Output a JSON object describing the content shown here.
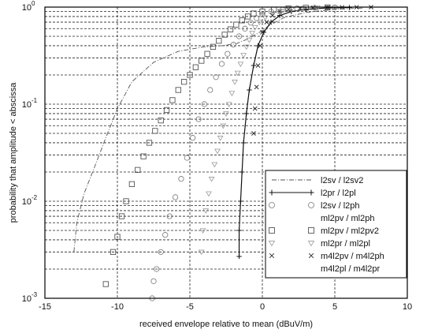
{
  "chart_data": {
    "type": "line",
    "title": "",
    "xlabel": "received envelope relative to mean (dBuV/m)",
    "ylabel": "probability that amplitude < abscissa",
    "xlim": [
      -15,
      10
    ],
    "ylim": [
      0.001,
      1
    ],
    "yscale": "log",
    "grid": true,
    "legend_position": "lower-right",
    "x_ticks": [
      "-15",
      "-10",
      "-5",
      "0",
      "5",
      "10"
    ],
    "y_ticks": [
      {
        "exp": "-3",
        "value": 0.001
      },
      {
        "exp": "-2",
        "value": 0.01
      },
      {
        "exp": "-1",
        "value": 0.1
      },
      {
        "exp": "0",
        "value": 1
      }
    ],
    "series": [
      {
        "name": "l2sv / l2sv2",
        "marker": "none",
        "dash": "dashdot",
        "points": [
          [
            -13.0,
            0.003
          ],
          [
            -12.8,
            0.006
          ],
          [
            -12.3,
            0.012
          ],
          [
            -11.6,
            0.022
          ],
          [
            -10.8,
            0.045
          ],
          [
            -10.0,
            0.09
          ],
          [
            -9.0,
            0.17
          ],
          [
            -7.5,
            0.27
          ],
          [
            -5.8,
            0.35
          ],
          [
            -4.0,
            0.39
          ],
          [
            -2.8,
            0.4
          ],
          [
            -1.8,
            0.42
          ],
          [
            -1.0,
            0.47
          ],
          [
            -0.2,
            0.55
          ],
          [
            0.5,
            0.65
          ],
          [
            1.5,
            0.78
          ],
          [
            3.0,
            0.88
          ],
          [
            5.0,
            0.95
          ],
          [
            7.0,
            0.98
          ]
        ]
      },
      {
        "name": "l2pr / l2pl",
        "marker": "plus",
        "dash": "solid",
        "points": [
          [
            -1.6,
            0.0027
          ],
          [
            -1.6,
            0.005
          ],
          [
            -1.5,
            0.01
          ],
          [
            -1.4,
            0.02
          ],
          [
            -1.3,
            0.04
          ],
          [
            -1.1,
            0.08
          ],
          [
            -0.9,
            0.14
          ],
          [
            -0.6,
            0.25
          ],
          [
            -0.3,
            0.4
          ],
          [
            0.1,
            0.55
          ],
          [
            0.6,
            0.7
          ],
          [
            1.2,
            0.82
          ],
          [
            2.0,
            0.9
          ],
          [
            3.0,
            0.95
          ],
          [
            4.5,
            0.98
          ],
          [
            6.0,
            0.99
          ]
        ]
      },
      {
        "name": "l2sv / l2ph",
        "name2": "ml2pv / ml2ph",
        "marker": "circle",
        "dash": "none",
        "points": [
          [
            -7.6,
            0.001
          ],
          [
            -7.5,
            0.0015
          ],
          [
            -7.3,
            0.002
          ],
          [
            -7.0,
            0.003
          ],
          [
            -6.7,
            0.0045
          ],
          [
            -6.4,
            0.007
          ],
          [
            -6.0,
            0.011
          ],
          [
            -5.6,
            0.017
          ],
          [
            -5.2,
            0.028
          ],
          [
            -4.8,
            0.045
          ],
          [
            -4.4,
            0.07
          ],
          [
            -4.0,
            0.1
          ],
          [
            -3.6,
            0.14
          ],
          [
            -3.2,
            0.19
          ],
          [
            -2.8,
            0.26
          ],
          [
            -2.4,
            0.33
          ],
          [
            -2.0,
            0.41
          ],
          [
            -1.6,
            0.5
          ],
          [
            -1.2,
            0.6
          ],
          [
            -0.8,
            0.69
          ],
          [
            -0.4,
            0.77
          ],
          [
            0.0,
            0.84
          ],
          [
            0.6,
            0.9
          ],
          [
            1.4,
            0.94
          ],
          [
            2.4,
            0.97
          ],
          [
            3.6,
            0.985
          ],
          [
            5.0,
            0.993
          ]
        ]
      },
      {
        "name": "ml2pv / ml2pv2",
        "marker": "square",
        "dash": "none",
        "points": [
          [
            -10.8,
            0.0014
          ],
          [
            -10.3,
            0.003
          ],
          [
            -10.0,
            0.0043
          ],
          [
            -9.7,
            0.007
          ],
          [
            -9.4,
            0.01
          ],
          [
            -9.0,
            0.015
          ],
          [
            -8.6,
            0.021
          ],
          [
            -8.2,
            0.029
          ],
          [
            -7.8,
            0.04
          ],
          [
            -7.4,
            0.053
          ],
          [
            -7.0,
            0.068
          ],
          [
            -6.6,
            0.087
          ],
          [
            -6.2,
            0.11
          ],
          [
            -5.8,
            0.14
          ],
          [
            -5.4,
            0.17
          ],
          [
            -5.0,
            0.2
          ],
          [
            -4.6,
            0.24
          ],
          [
            -4.2,
            0.28
          ],
          [
            -3.8,
            0.33
          ],
          [
            -3.4,
            0.39
          ],
          [
            -3.0,
            0.45
          ],
          [
            -2.6,
            0.52
          ],
          [
            -2.2,
            0.59
          ],
          [
            -1.8,
            0.66
          ],
          [
            -1.4,
            0.73
          ],
          [
            -1.0,
            0.8
          ],
          [
            -0.6,
            0.86
          ],
          [
            0.0,
            0.9
          ],
          [
            0.8,
            0.94
          ],
          [
            1.8,
            0.97
          ],
          [
            3.0,
            0.985
          ],
          [
            4.5,
            0.993
          ]
        ]
      },
      {
        "name": "ml2pr / ml2pl",
        "marker": "triangle-down",
        "dash": "none",
        "points": [
          [
            -4.2,
            0.003
          ],
          [
            -4.1,
            0.005
          ],
          [
            -3.9,
            0.008
          ],
          [
            -3.7,
            0.012
          ],
          [
            -3.5,
            0.017
          ],
          [
            -3.3,
            0.024
          ],
          [
            -3.1,
            0.033
          ],
          [
            -2.9,
            0.045
          ],
          [
            -2.7,
            0.06
          ],
          [
            -2.5,
            0.08
          ],
          [
            -2.3,
            0.1
          ],
          [
            -2.1,
            0.13
          ],
          [
            -1.9,
            0.17
          ],
          [
            -1.7,
            0.21
          ],
          [
            -1.5,
            0.26
          ],
          [
            -1.3,
            0.32
          ],
          [
            -1.1,
            0.39
          ],
          [
            -0.9,
            0.46
          ],
          [
            -0.7,
            0.54
          ],
          [
            -0.5,
            0.62
          ],
          [
            -0.2,
            0.7
          ],
          [
            0.2,
            0.78
          ],
          [
            0.7,
            0.86
          ],
          [
            1.3,
            0.91
          ],
          [
            2.0,
            0.95
          ],
          [
            2.8,
            0.97
          ],
          [
            3.8,
            0.985
          ],
          [
            5.0,
            0.993
          ]
        ]
      },
      {
        "name": "m4l2pv / m4l2ph",
        "name2": "m4l2pl / m4l2pr",
        "marker": "cross",
        "dash": "none",
        "points": [
          [
            -0.6,
            0.05
          ],
          [
            -0.5,
            0.09
          ],
          [
            -0.4,
            0.15
          ],
          [
            -0.3,
            0.25
          ],
          [
            -0.15,
            0.4
          ],
          [
            0.0,
            0.55
          ],
          [
            0.3,
            0.7
          ],
          [
            0.7,
            0.82
          ],
          [
            1.2,
            0.9
          ],
          [
            1.8,
            0.95
          ],
          [
            2.6,
            0.97
          ],
          [
            3.5,
            0.985
          ],
          [
            4.5,
            0.99
          ],
          [
            5.5,
            0.995
          ],
          [
            6.5,
            0.998
          ],
          [
            7.5,
            0.999
          ]
        ]
      }
    ]
  }
}
